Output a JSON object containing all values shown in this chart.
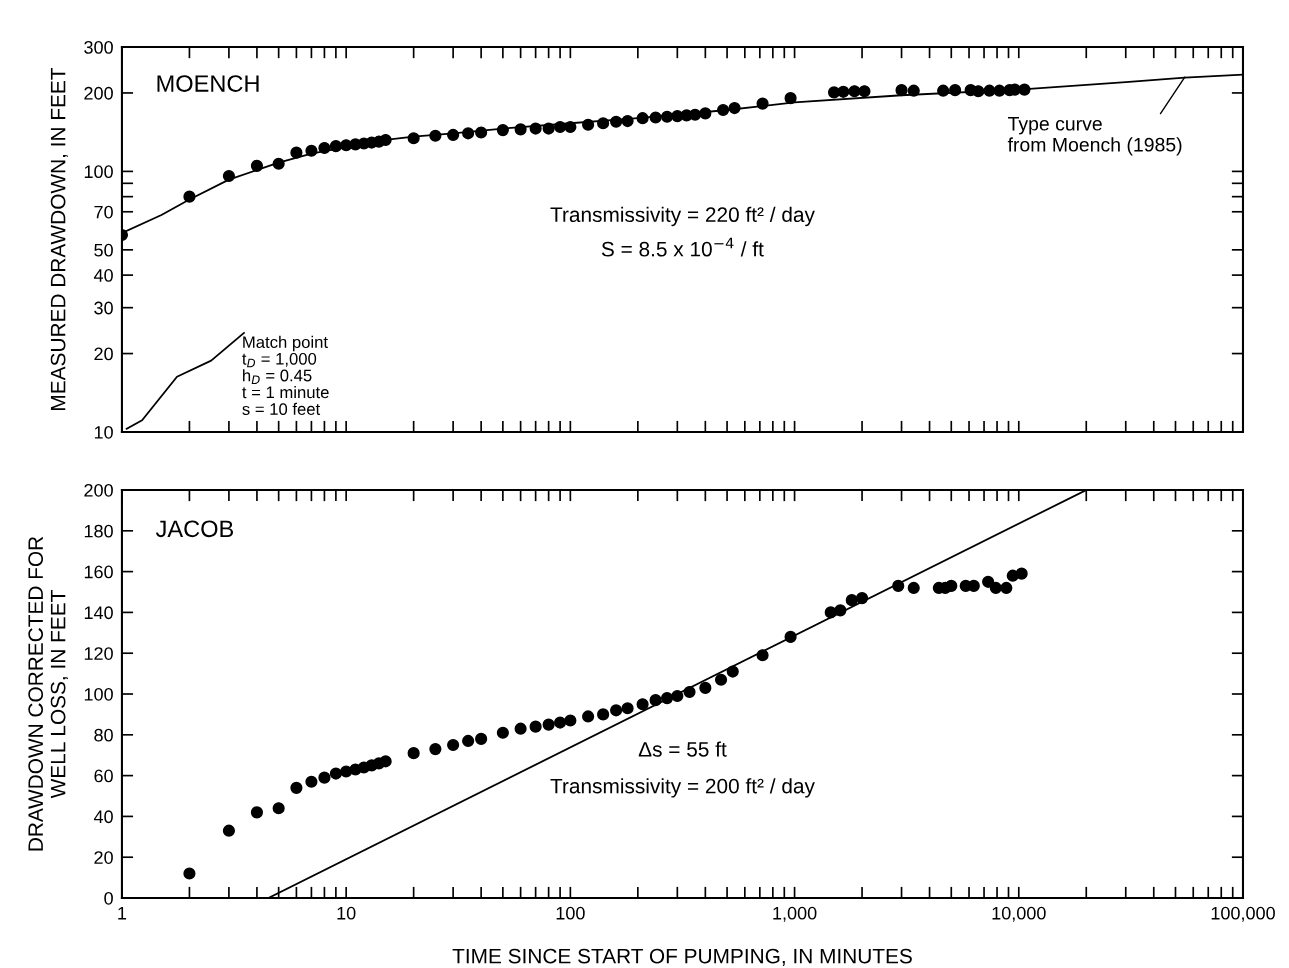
{
  "chart_data": [
    {
      "type": "scatter",
      "title": "MOENCH",
      "ylabel": "MEASURED DRAWDOWN, IN FEET",
      "log": "xy",
      "grid": false,
      "tick_labels": "y",
      "xlim": [
        1,
        100000
      ],
      "xticks": [
        {
          "value": 1,
          "label": null
        },
        {
          "value": 2,
          "label": null
        },
        {
          "value": 3,
          "label": null
        },
        {
          "value": 4,
          "label": null
        },
        {
          "value": 5,
          "label": null
        },
        {
          "value": 6,
          "label": null
        },
        {
          "value": 7,
          "label": null
        },
        {
          "value": 8,
          "label": null
        },
        {
          "value": 9,
          "label": null
        },
        {
          "value": 10,
          "label": null
        },
        {
          "value": 20,
          "label": null
        },
        {
          "value": 30,
          "label": null
        },
        {
          "value": 40,
          "label": null
        },
        {
          "value": 50,
          "label": null
        },
        {
          "value": 60,
          "label": null
        },
        {
          "value": 70,
          "label": null
        },
        {
          "value": 80,
          "label": null
        },
        {
          "value": 90,
          "label": null
        },
        {
          "value": 100,
          "label": null
        },
        {
          "value": 200,
          "label": null
        },
        {
          "value": 300,
          "label": null
        },
        {
          "value": 400,
          "label": null
        },
        {
          "value": 500,
          "label": null
        },
        {
          "value": 600,
          "label": null
        },
        {
          "value": 700,
          "label": null
        },
        {
          "value": 800,
          "label": null
        },
        {
          "value": 900,
          "label": null
        },
        {
          "value": 1000,
          "label": null
        },
        {
          "value": 2000,
          "label": null
        },
        {
          "value": 3000,
          "label": null
        },
        {
          "value": 4000,
          "label": null
        },
        {
          "value": 5000,
          "label": null
        },
        {
          "value": 6000,
          "label": null
        },
        {
          "value": 7000,
          "label": null
        },
        {
          "value": 8000,
          "label": null
        },
        {
          "value": 9000,
          "label": null
        },
        {
          "value": 10000,
          "label": null
        },
        {
          "value": 20000,
          "label": null
        },
        {
          "value": 30000,
          "label": null
        },
        {
          "value": 40000,
          "label": null
        },
        {
          "value": 50000,
          "label": null
        },
        {
          "value": 60000,
          "label": null
        },
        {
          "value": 70000,
          "label": null
        },
        {
          "value": 80000,
          "label": null
        },
        {
          "value": 90000,
          "label": null
        },
        {
          "value": 100000,
          "label": null
        }
      ],
      "ylim": [
        10,
        300
      ],
      "yticks": [
        10,
        20,
        30,
        40,
        50,
        70,
        {
          "value": 80,
          "label": null
        },
        {
          "value": 90,
          "label": null
        },
        100,
        200,
        300
      ],
      "annotations": [
        {
          "text": "Type curve\nfrom Moench (1985)",
          "x": 55000,
          "y": 230
        },
        "Transmissivity = 220 ft² / day",
        "S = 8.5 x 10$^{−4}$ / ft",
        "Match point\nt$_{D}$ = 1,000\nh$_{D}$ = 0.45\nt = 1 minute\ns = 10 feet"
      ],
      "series": [
        {
          "color": "#000000",
          "marker": "circle",
          "x": [
            1,
            2,
            3,
            4,
            5,
            6,
            7,
            8,
            9,
            10,
            11,
            12,
            13,
            14,
            15,
            20,
            25,
            30,
            35,
            40,
            50,
            60,
            70,
            80,
            90,
            100,
            120,
            140,
            160,
            180,
            210,
            240,
            270,
            300,
            330,
            360,
            400,
            480,
            540,
            720,
            960,
            1500,
            1650,
            1850,
            2050,
            3000,
            3400,
            4600,
            5200,
            6100,
            6600,
            7400,
            8200,
            9100,
            9600,
            10600
          ],
          "values": [
            57,
            80,
            96,
            105,
            107,
            118,
            120,
            123,
            125,
            126,
            127,
            128,
            129,
            130,
            132,
            134,
            137,
            138,
            140,
            141,
            144,
            145,
            146,
            146,
            148,
            148,
            151,
            153,
            155,
            156,
            160,
            161,
            162,
            163,
            164,
            165,
            167,
            172,
            175,
            182,
            191,
            201,
            202,
            203,
            203,
            205,
            204,
            204,
            205,
            205,
            203,
            204,
            204,
            205,
            206,
            206
          ]
        },
        {
          "type": "line",
          "color": "#000000",
          "line_style": "solid",
          "x": [
            1,
            1.5,
            2,
            3,
            5,
            7,
            10,
            15,
            20,
            30,
            50,
            100,
            200,
            500,
            1000,
            3000,
            10000,
            30000,
            55000,
            100000
          ],
          "values": [
            58,
            68,
            78,
            93,
            108,
            117,
            124,
            132,
            136,
            140,
            146,
            153,
            160,
            172,
            184,
            196,
            206,
            220,
            229,
            235
          ]
        },
        {
          "type": "line",
          "color": "#000000",
          "line_style": "solid",
          "x": [
            1.05,
            1.23,
            1.76,
            2.5,
            3.5
          ],
          "values": [
            10.3,
            11.1,
            16.3,
            18.8,
            24
          ]
        }
      ]
    },
    {
      "type": "scatter",
      "title": "JACOB",
      "ylabel": "DRAWDOWN CORRECTED FOR\nWELL LOSS, IN FEET",
      "xlabel": "TIME SINCE START OF PUMPING, IN MINUTES",
      "log": "x",
      "grid": false,
      "xlim": [
        1,
        100000
      ],
      "xticks": [
        1,
        {
          "value": 2,
          "label": null
        },
        {
          "value": 3,
          "label": null
        },
        {
          "value": 4,
          "label": null
        },
        {
          "value": 5,
          "label": null
        },
        {
          "value": 6,
          "label": null
        },
        {
          "value": 7,
          "label": null
        },
        {
          "value": 8,
          "label": null
        },
        {
          "value": 9,
          "label": null
        },
        10,
        {
          "value": 20,
          "label": null
        },
        {
          "value": 30,
          "label": null
        },
        {
          "value": 40,
          "label": null
        },
        {
          "value": 50,
          "label": null
        },
        {
          "value": 60,
          "label": null
        },
        {
          "value": 70,
          "label": null
        },
        {
          "value": 80,
          "label": null
        },
        {
          "value": 90,
          "label": null
        },
        100,
        {
          "value": 200,
          "label": null
        },
        {
          "value": 300,
          "label": null
        },
        {
          "value": 400,
          "label": null
        },
        {
          "value": 500,
          "label": null
        },
        {
          "value": 600,
          "label": null
        },
        {
          "value": 700,
          "label": null
        },
        {
          "value": 800,
          "label": null
        },
        {
          "value": 900,
          "label": null
        },
        {
          "value": 1000,
          "label": "1,000"
        },
        {
          "value": 2000,
          "label": null
        },
        {
          "value": 3000,
          "label": null
        },
        {
          "value": 4000,
          "label": null
        },
        {
          "value": 5000,
          "label": null
        },
        {
          "value": 6000,
          "label": null
        },
        {
          "value": 7000,
          "label": null
        },
        {
          "value": 8000,
          "label": null
        },
        {
          "value": 9000,
          "label": null
        },
        {
          "value": 10000,
          "label": "10,000"
        },
        {
          "value": 20000,
          "label": null
        },
        {
          "value": 30000,
          "label": null
        },
        {
          "value": 40000,
          "label": null
        },
        {
          "value": 50000,
          "label": null
        },
        {
          "value": 60000,
          "label": null
        },
        {
          "value": 70000,
          "label": null
        },
        {
          "value": 80000,
          "label": null
        },
        {
          "value": 90000,
          "label": null
        },
        {
          "value": 100000,
          "label": "100,000"
        }
      ],
      "ylim": [
        0,
        200
      ],
      "yticks": [
        0,
        20,
        40,
        60,
        80,
        100,
        120,
        140,
        160,
        180,
        200
      ],
      "annotations": [
        "Δs = 55 ft",
        "Transmissivity = 200 ft² / day"
      ],
      "series": [
        {
          "color": "#000000",
          "marker": "circle",
          "x": [
            2,
            3,
            4,
            5,
            6,
            7,
            8,
            9,
            10,
            11,
            12,
            13,
            14,
            15,
            20,
            25,
            30,
            35,
            40,
            50,
            60,
            70,
            80,
            90,
            100,
            120,
            140,
            160,
            180,
            210,
            240,
            270,
            300,
            340,
            400,
            470,
            530,
            720,
            960,
            1450,
            1600,
            1800,
            2000,
            2900,
            3400,
            4400,
            4700,
            5000,
            5800,
            6300,
            7300,
            7900,
            8800,
            9400,
            10300
          ],
          "values": [
            12,
            33,
            42,
            44,
            54,
            57,
            59,
            61,
            62,
            63,
            64,
            65,
            66,
            67,
            71,
            73,
            75,
            77,
            78,
            81,
            83,
            84,
            85,
            86,
            87,
            89,
            90,
            92,
            93,
            95,
            97,
            98,
            99,
            101,
            103,
            107,
            111,
            119,
            128,
            140,
            141,
            146,
            147,
            153,
            152,
            152,
            152,
            153,
            153,
            153,
            155,
            152,
            152,
            158,
            159
          ]
        },
        {
          "type": "line",
          "color": "#000000",
          "line_style": "solid",
          "x": [
            4.5,
            20000
          ],
          "values": [
            0,
            200
          ]
        }
      ]
    }
  ]
}
